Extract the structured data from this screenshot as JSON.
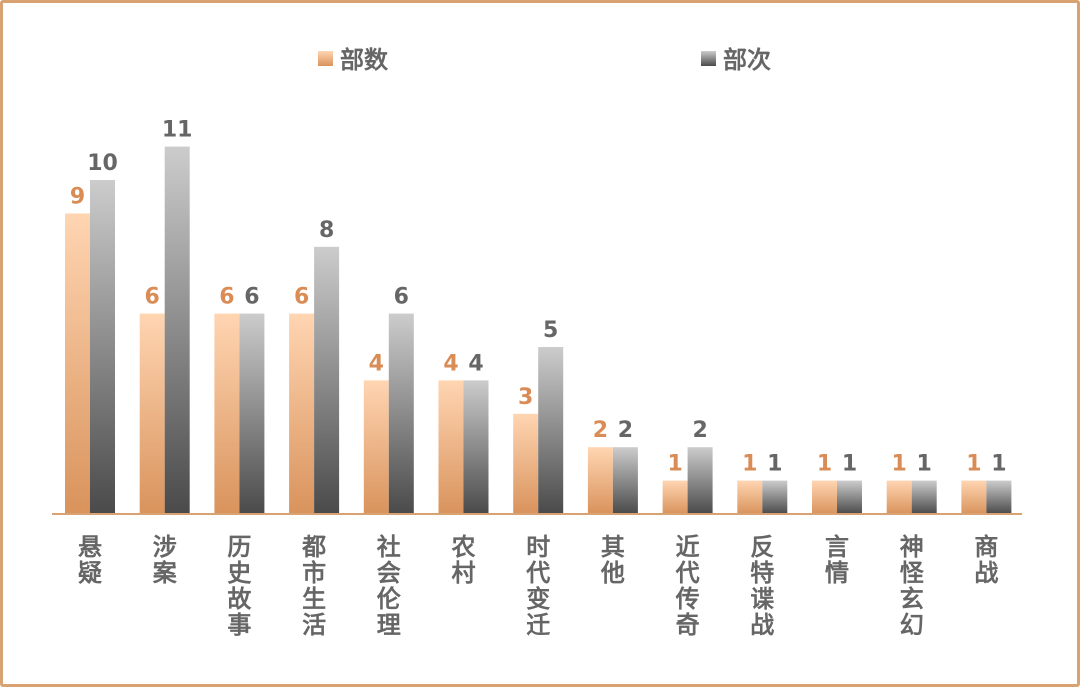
{
  "chart_data": {
    "type": "bar",
    "categories": [
      "悬疑",
      "涉案",
      "历史故事",
      "都市生活",
      "社会伦理",
      "农村",
      "时代变迁",
      "其他",
      "近代传奇",
      "反特谍战",
      "言情",
      "神怪玄幻",
      "商战"
    ],
    "series": [
      {
        "name": "部数",
        "values": [
          9,
          6,
          6,
          6,
          4,
          4,
          3,
          2,
          1,
          1,
          1,
          1,
          1
        ]
      },
      {
        "name": "部次",
        "values": [
          10,
          11,
          6,
          8,
          6,
          4,
          5,
          2,
          2,
          1,
          1,
          1,
          1
        ]
      }
    ],
    "title": "",
    "xlabel": "",
    "ylabel": "",
    "ylim": [
      0,
      11
    ],
    "grid": false,
    "legend_position": "top",
    "data_labels": true,
    "colors": {
      "series_a_top": "#ffd5b2",
      "series_a_bottom": "#d9935c",
      "series_b_top": "#cccccc",
      "series_b_bottom": "#4a4a4a",
      "label_a": "#d98c55",
      "label_b": "#666666",
      "axis": "#d9a273",
      "frame": "#d9a273"
    }
  }
}
